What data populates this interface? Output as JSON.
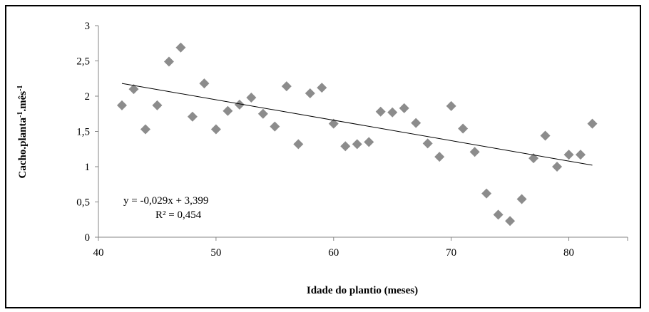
{
  "chart_data": {
    "type": "scatter",
    "title": "",
    "xlabel": "Idade do plantio (meses)",
    "ylabel_parts": [
      "Cacho.planta",
      "-1",
      ".mês",
      "-1"
    ],
    "xlim": [
      40,
      85
    ],
    "ylim": [
      0,
      3
    ],
    "x_ticks": [
      40,
      50,
      60,
      70,
      80
    ],
    "y_ticks": [
      0,
      0.5,
      1,
      1.5,
      2,
      2.5,
      3
    ],
    "x_tick_labels": [
      "40",
      "50",
      "60",
      "70",
      "80"
    ],
    "y_tick_labels": [
      "0",
      "0,5",
      "1",
      "1,5",
      "2",
      "2,5",
      "3"
    ],
    "grid": false,
    "marker": "diamond",
    "marker_color": "#8c8c8c",
    "points": [
      {
        "x": 42,
        "y": 1.87
      },
      {
        "x": 43,
        "y": 2.1
      },
      {
        "x": 44,
        "y": 1.53
      },
      {
        "x": 45,
        "y": 1.87
      },
      {
        "x": 46,
        "y": 2.49
      },
      {
        "x": 47,
        "y": 2.69
      },
      {
        "x": 48,
        "y": 1.71
      },
      {
        "x": 49,
        "y": 2.18
      },
      {
        "x": 50,
        "y": 1.53
      },
      {
        "x": 51,
        "y": 1.79
      },
      {
        "x": 52,
        "y": 1.88
      },
      {
        "x": 53,
        "y": 1.98
      },
      {
        "x": 54,
        "y": 1.75
      },
      {
        "x": 55,
        "y": 1.57
      },
      {
        "x": 56,
        "y": 2.14
      },
      {
        "x": 57,
        "y": 1.32
      },
      {
        "x": 58,
        "y": 2.04
      },
      {
        "x": 59,
        "y": 2.12
      },
      {
        "x": 60,
        "y": 1.61
      },
      {
        "x": 61,
        "y": 1.29
      },
      {
        "x": 62,
        "y": 1.32
      },
      {
        "x": 63,
        "y": 1.35
      },
      {
        "x": 64,
        "y": 1.78
      },
      {
        "x": 65,
        "y": 1.77
      },
      {
        "x": 66,
        "y": 1.83
      },
      {
        "x": 67,
        "y": 1.62
      },
      {
        "x": 68,
        "y": 1.33
      },
      {
        "x": 69,
        "y": 1.14
      },
      {
        "x": 70,
        "y": 1.86
      },
      {
        "x": 71,
        "y": 1.54
      },
      {
        "x": 72,
        "y": 1.21
      },
      {
        "x": 73,
        "y": 0.62
      },
      {
        "x": 74,
        "y": 0.32
      },
      {
        "x": 75,
        "y": 0.23
      },
      {
        "x": 76,
        "y": 0.54
      },
      {
        "x": 77,
        "y": 1.12
      },
      {
        "x": 78,
        "y": 1.44
      },
      {
        "x": 79,
        "y": 1.0
      },
      {
        "x": 80,
        "y": 1.17
      },
      {
        "x": 81,
        "y": 1.17
      },
      {
        "x": 82,
        "y": 1.61
      }
    ],
    "trendline": {
      "slope": -0.029,
      "intercept": 3.399,
      "x_start": 42,
      "x_end": 82,
      "color": "#000000"
    },
    "equation_text": "y = -0,029x + 3,399",
    "r2_text": "R² = 0,454"
  }
}
